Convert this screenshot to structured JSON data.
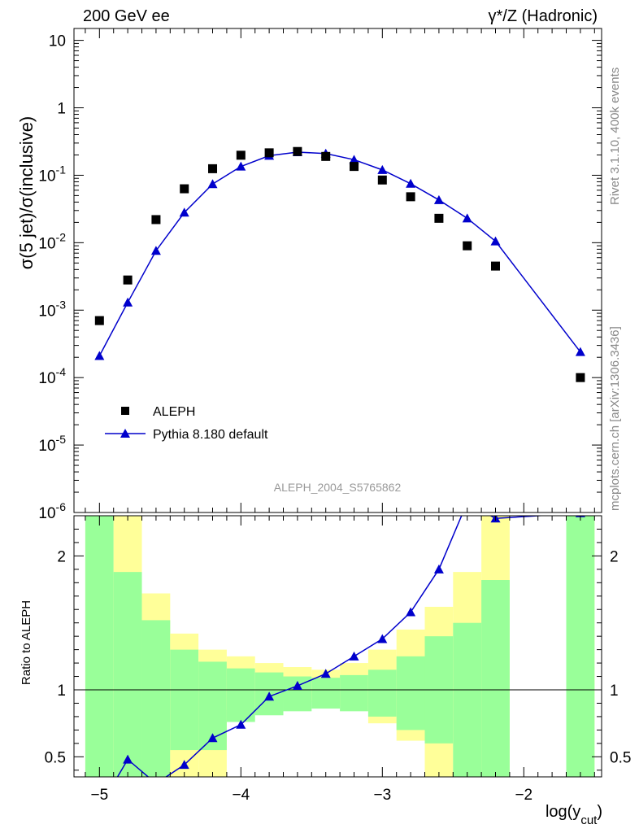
{
  "header": {
    "left": "200 GeV ee",
    "right": "γ*/Z (Hadronic)"
  },
  "side_labels": {
    "top": "Rivet 3.1.10,  400k events",
    "bottom": "mcplots.cern.ch [arXiv:1306.3436]"
  },
  "watermark": "ALEPH_2004_S5765862",
  "colors": {
    "data": "#000000",
    "mc": "#0000cc",
    "band_inner": "#99ff99",
    "band_outer": "#ffff99"
  },
  "chart_data": [
    {
      "type": "scatter",
      "ylabel": "σ(5 jet)/σ(inclusive)",
      "yscale": "log",
      "ylim": [
        1e-06,
        15
      ],
      "xlim": [
        -5.18,
        -1.45
      ],
      "y_ticks": [
        "10^-6",
        "10^-5",
        "10^-4",
        "10^-3",
        "10^-2",
        "10^-1",
        "1",
        "10"
      ],
      "legend": {
        "position": "lower-left",
        "entries": [
          "ALEPH",
          "Pythia 8.180 default"
        ]
      },
      "series": [
        {
          "name": "ALEPH",
          "marker": "square",
          "x": [
            -5.0,
            -4.8,
            -4.6,
            -4.4,
            -4.2,
            -4.0,
            -3.8,
            -3.6,
            -3.4,
            -3.2,
            -3.0,
            -2.8,
            -2.6,
            -2.4,
            -2.2,
            -1.6
          ],
          "y": [
            0.0007,
            0.0028,
            0.022,
            0.063,
            0.125,
            0.198,
            0.215,
            0.225,
            0.19,
            0.135,
            0.085,
            0.048,
            0.023,
            0.009,
            0.0045,
            0.0001
          ]
        },
        {
          "name": "Pythia 8.180 default",
          "marker": "triangle",
          "x": [
            -5.0,
            -4.8,
            -4.6,
            -4.4,
            -4.2,
            -4.0,
            -3.8,
            -3.6,
            -3.4,
            -3.2,
            -3.0,
            -2.8,
            -2.6,
            -2.4,
            -2.2,
            -1.6
          ],
          "y": [
            0.00021,
            0.0013,
            0.0076,
            0.028,
            0.074,
            0.135,
            0.195,
            0.22,
            0.21,
            0.17,
            0.12,
            0.075,
            0.043,
            0.023,
            0.0105,
            0.00024
          ]
        }
      ]
    },
    {
      "type": "line",
      "xlabel": "log(y_cut)",
      "ylabel": "Ratio to ALEPH",
      "ylim": [
        0.35,
        2.3
      ],
      "xlim": [
        -5.18,
        -1.45
      ],
      "x_ticks": [
        -5,
        -4,
        -3,
        -2
      ],
      "y_ticks": [
        0.5,
        1,
        2
      ],
      "reference_line": 1,
      "bands": {
        "edges": [
          -5.1,
          -4.9,
          -4.7,
          -4.5,
          -4.3,
          -4.1,
          -3.9,
          -3.7,
          -3.5,
          -3.3,
          -3.1,
          -2.9,
          -2.7,
          -2.5,
          -2.3,
          -2.1,
          -1.7,
          -1.5
        ],
        "inner": [
          [
            0.35,
            2.3
          ],
          [
            0.35,
            1.88
          ],
          [
            0.35,
            1.52
          ],
          [
            0.55,
            1.3
          ],
          [
            0.55,
            1.21
          ],
          [
            0.76,
            1.16
          ],
          [
            0.81,
            1.13
          ],
          [
            0.84,
            1.1
          ],
          [
            0.86,
            1.09
          ],
          [
            0.84,
            1.11
          ],
          [
            0.8,
            1.15
          ],
          [
            0.7,
            1.25
          ],
          [
            0.6,
            1.4
          ],
          [
            0.35,
            1.5
          ],
          [
            0.35,
            1.82
          ],
          [
            0.35,
            2.3
          ],
          [
            0.35,
            2.3
          ]
        ],
        "outer": [
          [
            0.35,
            2.3
          ],
          [
            0.35,
            2.3
          ],
          [
            0.35,
            1.72
          ],
          [
            0.35,
            1.42
          ],
          [
            0.35,
            1.3
          ],
          [
            0.85,
            1.25
          ],
          [
            0.89,
            1.2
          ],
          [
            0.91,
            1.17
          ],
          [
            0.92,
            1.15
          ],
          [
            0.88,
            1.2
          ],
          [
            0.75,
            1.3
          ],
          [
            0.62,
            1.45
          ],
          [
            0.35,
            1.62
          ],
          [
            0.35,
            1.88
          ],
          [
            0.35,
            2.3
          ],
          [
            0.35,
            2.3
          ],
          [
            0.35,
            2.3
          ]
        ],
        "empty_bins": [
          15
        ]
      },
      "series": [
        {
          "name": "Pythia 8.180 default",
          "x": [
            -4.9,
            -4.8,
            -4.6,
            -4.4,
            -4.2,
            -4.0,
            -3.8,
            -3.6,
            -3.4,
            -3.2,
            -3.0,
            -2.8,
            -2.6,
            -2.4,
            -2.2,
            -1.6
          ],
          "y": [
            0.3,
            0.48,
            0.3,
            0.44,
            0.64,
            0.74,
            0.95,
            1.03,
            1.12,
            1.25,
            1.38,
            1.58,
            1.9,
            2.4,
            2.28,
            2.32
          ],
          "visible_markers": [
            false,
            true,
            false,
            true,
            true,
            true,
            true,
            true,
            true,
            true,
            true,
            true,
            true,
            false,
            true,
            true
          ]
        }
      ]
    }
  ]
}
